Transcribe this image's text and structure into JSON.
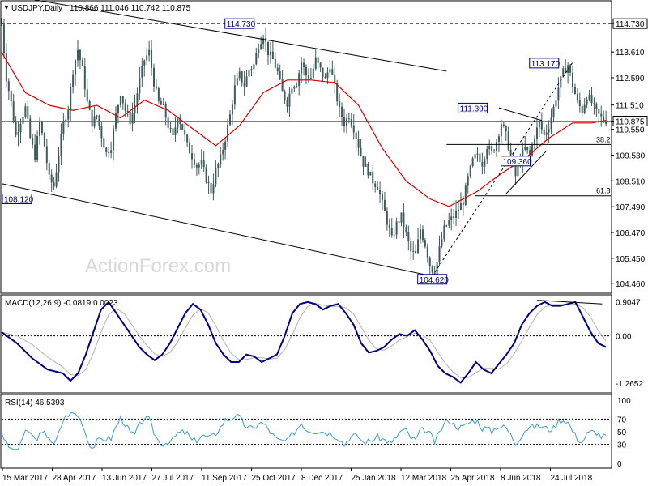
{
  "header": {
    "symbol_label": "USDJPY,Daily",
    "ohlc": "110.866 111.046 110.742 110.875"
  },
  "watermark": "ActionForex.com",
  "colors": {
    "candle": "#3f5a5a",
    "ma": "#d40000",
    "trendline": "#000000",
    "macd": "#000080",
    "signal": "#b0b0b0",
    "rsi": "#3a9ad9",
    "price_line": "#808080",
    "watermark": "#d8d8d8",
    "last_price_bg": "#ffffff"
  },
  "chart_data": [
    {
      "type": "candlestick",
      "pane": "price",
      "title": "USDJPY,Daily",
      "ylim": [
        104.1,
        115.6
      ],
      "y_ticks": [
        "114.730",
        "113.610",
        "112.590",
        "111.510",
        "110.875",
        "110.550",
        "109.530",
        "108.510",
        "107.490",
        "106.470",
        "105.450",
        "104.460"
      ],
      "x_ticks": [
        "15 Mar 2017",
        "28 Apr 2017",
        "13 Jun 2017",
        "27 Jul 2017",
        "11 Sep 2017",
        "25 Oct 2017",
        "8 Dec 2017",
        "25 Jan 2018",
        "12 Mar 2018",
        "25 Apr 2018",
        "8 Jun 2018",
        "24 Jul 2018"
      ],
      "last_price": 110.875,
      "highlight_level": 114.73,
      "close_path": [
        [
          0,
          114.7
        ],
        [
          2,
          112.6
        ],
        [
          4,
          111.6
        ],
        [
          6,
          110.3
        ],
        [
          8,
          110.9
        ],
        [
          10,
          111.4
        ],
        [
          12,
          110.2
        ],
        [
          14,
          109.5
        ],
        [
          16,
          110.8
        ],
        [
          18,
          109.9
        ],
        [
          20,
          108.6
        ],
        [
          22,
          108.3
        ],
        [
          24,
          109.6
        ],
        [
          26,
          110.8
        ],
        [
          28,
          111.4
        ],
        [
          30,
          112.9
        ],
        [
          32,
          113.7
        ],
        [
          34,
          112.9
        ],
        [
          36,
          111.6
        ],
        [
          38,
          110.8
        ],
        [
          40,
          111.1
        ],
        [
          42,
          110.3
        ],
        [
          44,
          109.6
        ],
        [
          46,
          109.9
        ],
        [
          48,
          111.1
        ],
        [
          50,
          112.0
        ],
        [
          52,
          111.3
        ],
        [
          54,
          110.9
        ],
        [
          56,
          111.5
        ],
        [
          58,
          112.5
        ],
        [
          60,
          113.3
        ],
        [
          62,
          113.6
        ],
        [
          64,
          112.4
        ],
        [
          66,
          111.6
        ],
        [
          68,
          111.4
        ],
        [
          70,
          110.7
        ],
        [
          72,
          110.2
        ],
        [
          74,
          111.1
        ],
        [
          76,
          110.6
        ],
        [
          78,
          109.9
        ],
        [
          80,
          109.5
        ],
        [
          82,
          109.1
        ],
        [
          84,
          109.2
        ],
        [
          86,
          108.6
        ],
        [
          88,
          108.1
        ],
        [
          90,
          108.9
        ],
        [
          92,
          109.4
        ],
        [
          94,
          110.2
        ],
        [
          96,
          111.1
        ],
        [
          98,
          112.2
        ],
        [
          100,
          112.7
        ],
        [
          102,
          112.3
        ],
        [
          104,
          112.9
        ],
        [
          106,
          113.1
        ],
        [
          108,
          113.9
        ],
        [
          110,
          114.3
        ],
        [
          112,
          113.6
        ],
        [
          114,
          113.3
        ],
        [
          116,
          112.8
        ],
        [
          118,
          112.0
        ],
        [
          120,
          111.6
        ],
        [
          122,
          112.3
        ],
        [
          124,
          112.4
        ],
        [
          126,
          113.2
        ],
        [
          128,
          112.7
        ],
        [
          130,
          112.6
        ],
        [
          132,
          113.3
        ],
        [
          134,
          112.9
        ],
        [
          136,
          112.5
        ],
        [
          138,
          113.1
        ],
        [
          140,
          112.2
        ],
        [
          142,
          111.3
        ],
        [
          144,
          110.8
        ],
        [
          146,
          111.1
        ],
        [
          148,
          110.6
        ],
        [
          150,
          109.9
        ],
        [
          152,
          109.2
        ],
        [
          154,
          108.9
        ],
        [
          156,
          108.5
        ],
        [
          158,
          108.3
        ],
        [
          160,
          107.6
        ],
        [
          162,
          106.9
        ],
        [
          164,
          106.2
        ],
        [
          166,
          106.8
        ],
        [
          168,
          107.1
        ],
        [
          170,
          106.4
        ],
        [
          172,
          105.7
        ],
        [
          174,
          105.6
        ],
        [
          176,
          106.6
        ],
        [
          178,
          106.0
        ],
        [
          180,
          105.2
        ],
        [
          182,
          104.8
        ],
        [
          184,
          105.8
        ],
        [
          186,
          106.6
        ],
        [
          188,
          106.9
        ],
        [
          190,
          107.1
        ],
        [
          192,
          107.4
        ],
        [
          194,
          107.7
        ],
        [
          196,
          108.6
        ],
        [
          198,
          109.3
        ],
        [
          200,
          109.6
        ],
        [
          202,
          109.2
        ],
        [
          204,
          109.9
        ],
        [
          206,
          109.6
        ],
        [
          208,
          110.1
        ],
        [
          210,
          110.8
        ],
        [
          212,
          110.3
        ],
        [
          214,
          109.5
        ],
        [
          216,
          108.7
        ],
        [
          218,
          109.4
        ],
        [
          220,
          109.8
        ],
        [
          222,
          109.5
        ],
        [
          224,
          110.3
        ],
        [
          226,
          110.8
        ],
        [
          228,
          110.3
        ],
        [
          230,
          110.7
        ],
        [
          232,
          111.4
        ],
        [
          234,
          112.2
        ],
        [
          236,
          112.8
        ],
        [
          238,
          113.1
        ],
        [
          240,
          112.3
        ],
        [
          242,
          111.6
        ],
        [
          244,
          111.3
        ],
        [
          246,
          111.9
        ],
        [
          248,
          111.6
        ],
        [
          250,
          111.2
        ],
        [
          252,
          111.0
        ],
        [
          254,
          110.9
        ]
      ],
      "moving_average": [
        [
          0,
          113.6
        ],
        [
          10,
          112.0
        ],
        [
          20,
          111.5
        ],
        [
          30,
          111.3
        ],
        [
          40,
          111.5
        ],
        [
          50,
          111.0
        ],
        [
          60,
          111.7
        ],
        [
          70,
          111.3
        ],
        [
          80,
          110.6
        ],
        [
          90,
          109.9
        ],
        [
          100,
          110.7
        ],
        [
          110,
          112.0
        ],
        [
          120,
          112.5
        ],
        [
          130,
          112.5
        ],
        [
          140,
          112.4
        ],
        [
          150,
          111.5
        ],
        [
          160,
          109.8
        ],
        [
          170,
          108.5
        ],
        [
          180,
          107.8
        ],
        [
          188,
          107.5
        ],
        [
          200,
          108.1
        ],
        [
          210,
          108.8
        ],
        [
          220,
          109.4
        ],
        [
          230,
          110.2
        ],
        [
          240,
          110.8
        ],
        [
          248,
          110.8
        ],
        [
          254,
          110.9
        ]
      ],
      "trendlines": [
        {
          "name": "upper-channel",
          "points": [
            [
              0,
              115.9
            ],
            [
              187,
              112.85
            ]
          ],
          "dashed": false
        },
        {
          "name": "lower-channel",
          "points": [
            [
              0,
              108.4
            ],
            [
              181,
              104.74
            ]
          ],
          "dashed": false
        },
        {
          "name": "support-dashed",
          "points": [
            [
              181,
              104.74
            ],
            [
              240,
              113.2
            ]
          ],
          "dashed": true
        },
        {
          "name": "triangle-upper",
          "points": [
            [
              209,
              111.4
            ],
            [
              227,
              110.9
            ]
          ],
          "dashed": false
        },
        {
          "name": "triangle-lower",
          "points": [
            [
              212,
              108.0
            ],
            [
              229,
              109.7
            ]
          ],
          "dashed": false
        }
      ],
      "fib_levels": [
        {
          "label": "38.2",
          "value": 109.95
        },
        {
          "label": "61.8",
          "value": 107.92
        }
      ],
      "price_labels": [
        {
          "text": "114.730",
          "value": 114.73
        },
        {
          "text": "108.120",
          "value": 108.12
        },
        {
          "text": "104.620",
          "value": 104.62
        },
        {
          "text": "111.390",
          "value": 111.39
        },
        {
          "text": "113.170",
          "value": 113.17
        },
        {
          "text": "109.360",
          "value": 109.36
        }
      ]
    },
    {
      "type": "line",
      "pane": "macd",
      "title": "MACD(12,26,9) -0.0819 0.0023",
      "ylim": [
        -1.5,
        1.05
      ],
      "y_ticks": [
        "0.9047",
        "0.00",
        "-1.2652"
      ],
      "series": [
        {
          "name": "MACD",
          "values": [
            [
              0,
              0.1
            ],
            [
              4,
              -0.2
            ],
            [
              8,
              -0.6
            ],
            [
              12,
              -0.9
            ],
            [
              16,
              -1.0
            ],
            [
              18,
              -1.2
            ],
            [
              20,
              -1.0
            ],
            [
              22,
              -0.5
            ],
            [
              24,
              0.1
            ],
            [
              26,
              0.7
            ],
            [
              28,
              0.9
            ],
            [
              30,
              0.6
            ],
            [
              32,
              0.3
            ],
            [
              34,
              0.0
            ],
            [
              36,
              -0.3
            ],
            [
              38,
              -0.5
            ],
            [
              40,
              -0.65
            ],
            [
              42,
              -0.5
            ],
            [
              44,
              -0.2
            ],
            [
              46,
              0.2
            ],
            [
              48,
              0.6
            ],
            [
              50,
              0.85
            ],
            [
              52,
              0.7
            ],
            [
              54,
              0.3
            ],
            [
              56,
              -0.2
            ],
            [
              58,
              -0.5
            ],
            [
              60,
              -0.7
            ],
            [
              62,
              -0.7
            ],
            [
              64,
              -0.5
            ],
            [
              66,
              -0.55
            ],
            [
              68,
              -0.7
            ],
            [
              70,
              -0.6
            ],
            [
              72,
              -0.5
            ],
            [
              74,
              0.0
            ],
            [
              76,
              0.6
            ],
            [
              78,
              0.85
            ],
            [
              80,
              0.9
            ],
            [
              82,
              0.85
            ],
            [
              84,
              0.7
            ],
            [
              86,
              0.8
            ],
            [
              88,
              0.85
            ],
            [
              90,
              0.6
            ],
            [
              92,
              0.3
            ],
            [
              94,
              -0.2
            ],
            [
              96,
              -0.45
            ],
            [
              98,
              -0.4
            ],
            [
              100,
              -0.3
            ],
            [
              102,
              -0.1
            ],
            [
              104,
              0.05
            ],
            [
              106,
              0.0
            ],
            [
              108,
              0.15
            ],
            [
              110,
              -0.1
            ],
            [
              112,
              -0.4
            ],
            [
              114,
              -0.8
            ],
            [
              116,
              -1.0
            ],
            [
              118,
              -1.1
            ],
            [
              120,
              -1.25
            ],
            [
              122,
              -1.0
            ],
            [
              124,
              -0.7
            ],
            [
              126,
              -0.9
            ],
            [
              128,
              -1.0
            ],
            [
              130,
              -0.75
            ],
            [
              132,
              -0.5
            ],
            [
              134,
              -0.2
            ],
            [
              136,
              0.3
            ],
            [
              138,
              0.6
            ],
            [
              140,
              0.8
            ],
            [
              142,
              0.9
            ],
            [
              144,
              0.8
            ],
            [
              146,
              0.8
            ],
            [
              148,
              0.85
            ],
            [
              150,
              0.9
            ],
            [
              152,
              0.5
            ],
            [
              154,
              0.1
            ],
            [
              156,
              -0.2
            ],
            [
              158,
              -0.3
            ]
          ],
          "x_scale": [
            0,
            158,
            2,
            256
          ]
        }
      ]
    },
    {
      "type": "line",
      "pane": "rsi",
      "title": "RSI(14) 46.5393",
      "ylim": [
        0,
        100
      ],
      "y_ticks": [
        "100",
        "70",
        "50",
        "30",
        "0"
      ],
      "series": [
        {
          "name": "RSI",
          "values": []
        }
      ]
    }
  ]
}
